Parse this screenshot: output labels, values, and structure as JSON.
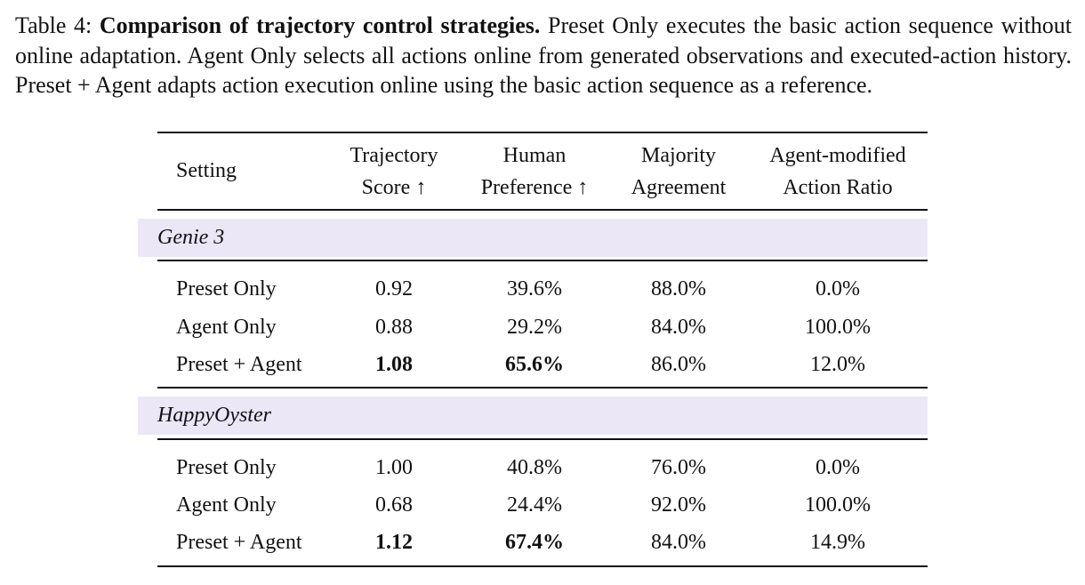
{
  "caption": {
    "label": "Table 4:",
    "title": "Comparison of trajectory control strategies.",
    "text": "Preset Only executes the basic action sequence without online adaptation. Agent Only selects all actions online from generated observations and executed-action history. Preset + Agent adapts action execution online using the basic action sequence as a reference."
  },
  "table": {
    "headers": [
      {
        "line1": "Setting",
        "line2": ""
      },
      {
        "line1": "Trajectory",
        "line2": "Score ↑"
      },
      {
        "line1": "Human",
        "line2": "Preference ↑"
      },
      {
        "line1": "Majority",
        "line2": "Agreement"
      },
      {
        "line1": "Agent-modified",
        "line2": "Action Ratio"
      }
    ],
    "groups": [
      {
        "name": "Genie 3",
        "rows": [
          {
            "setting": "Preset Only",
            "score": "0.92",
            "preference": "39.6%",
            "agreement": "88.0%",
            "ratio": "0.0%"
          },
          {
            "setting": "Agent Only",
            "score": "0.88",
            "preference": "29.2%",
            "agreement": "84.0%",
            "ratio": "100.0%"
          },
          {
            "setting": "Preset + Agent",
            "score": "1.08",
            "preference": "65.6%",
            "agreement": "86.0%",
            "ratio": "12.0%"
          }
        ]
      },
      {
        "name": "HappyOyster",
        "rows": [
          {
            "setting": "Preset Only",
            "score": "1.00",
            "preference": "40.8%",
            "agreement": "76.0%",
            "ratio": "0.0%"
          },
          {
            "setting": "Agent Only",
            "score": "0.68",
            "preference": "24.4%",
            "agreement": "92.0%",
            "ratio": "100.0%"
          },
          {
            "setting": "Preset + Agent",
            "score": "1.12",
            "preference": "67.4%",
            "agreement": "84.0%",
            "ratio": "14.9%"
          }
        ]
      }
    ]
  }
}
